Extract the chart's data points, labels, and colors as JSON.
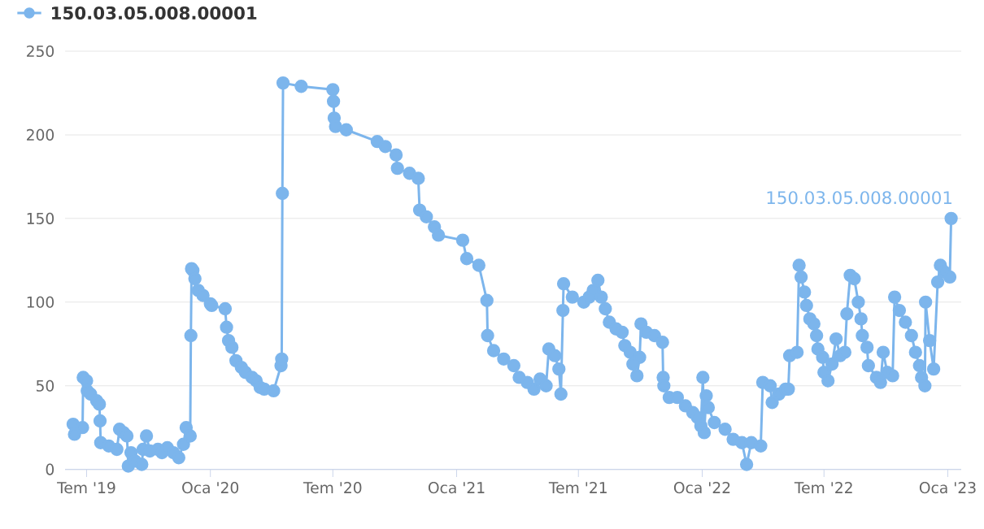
{
  "chart_data": {
    "type": "line",
    "x": [
      "2019-06-11",
      "2019-06-13",
      "2019-06-25",
      "2019-06-26",
      "2019-07-01",
      "2019-07-02",
      "2019-07-07",
      "2019-07-16",
      "2019-07-20",
      "2019-07-21",
      "2019-07-22",
      "2019-08-03",
      "2019-08-15",
      "2019-08-19",
      "2019-08-25",
      "2019-08-30",
      "2019-09-01",
      "2019-09-05",
      "2019-09-11",
      "2019-09-21",
      "2019-09-23",
      "2019-09-28",
      "2019-10-03",
      "2019-10-15",
      "2019-10-21",
      "2019-10-29",
      "2019-11-07",
      "2019-11-15",
      "2019-11-22",
      "2019-11-26",
      "2019-12-02",
      "2019-12-03",
      "2019-12-04",
      "2019-12-06",
      "2019-12-09",
      "2019-12-14",
      "2019-12-21",
      "2020-01-01",
      "2020-01-03",
      "2020-01-23",
      "2020-01-25",
      "2020-01-28",
      "2020-02-02",
      "2020-02-08",
      "2020-02-16",
      "2020-02-22",
      "2020-03-03",
      "2020-03-09",
      "2020-03-15",
      "2020-03-21",
      "2020-04-04",
      "2020-04-15",
      "2020-04-16",
      "2020-04-17",
      "2020-04-18",
      "2020-05-15",
      "2020-07-01",
      "2020-07-02",
      "2020-07-03",
      "2020-07-05",
      "2020-07-21",
      "2020-09-05",
      "2020-09-17",
      "2020-10-03",
      "2020-10-05",
      "2020-10-23",
      "2020-11-05",
      "2020-11-07",
      "2020-11-17",
      "2020-11-29",
      "2020-12-05",
      "2021-01-10",
      "2021-01-16",
      "2021-02-03",
      "2021-02-15",
      "2021-02-16",
      "2021-02-25",
      "2021-03-12",
      "2021-03-27",
      "2021-04-04",
      "2021-04-16",
      "2021-04-26",
      "2021-05-05",
      "2021-05-14",
      "2021-05-18",
      "2021-05-27",
      "2021-06-02",
      "2021-06-05",
      "2021-06-08",
      "2021-06-09",
      "2021-06-22",
      "2021-07-09",
      "2021-07-17",
      "2021-07-23",
      "2021-07-30",
      "2021-08-04",
      "2021-08-10",
      "2021-08-16",
      "2021-08-26",
      "2021-09-04",
      "2021-09-08",
      "2021-09-16",
      "2021-09-20",
      "2021-09-26",
      "2021-09-30",
      "2021-10-02",
      "2021-10-10",
      "2021-10-22",
      "2021-11-03",
      "2021-11-04",
      "2021-11-05",
      "2021-11-13",
      "2021-11-25",
      "2021-12-07",
      "2021-12-18",
      "2021-12-25",
      "2021-12-30",
      "2022-01-02",
      "2022-01-04",
      "2022-01-07",
      "2022-01-10",
      "2022-01-19",
      "2022-02-04",
      "2022-02-16",
      "2022-03-01",
      "2022-03-08",
      "2022-03-15",
      "2022-03-29",
      "2022-04-01",
      "2022-04-12",
      "2022-04-15",
      "2022-04-25",
      "2022-05-05",
      "2022-05-09",
      "2022-05-11",
      "2022-05-22",
      "2022-05-25",
      "2022-05-28",
      "2022-06-02",
      "2022-06-05",
      "2022-06-10",
      "2022-06-16",
      "2022-06-20",
      "2022-06-22",
      "2022-06-29",
      "2022-07-01",
      "2022-07-07",
      "2022-07-13",
      "2022-07-19",
      "2022-07-25",
      "2022-08-01",
      "2022-08-04",
      "2022-08-09",
      "2022-08-15",
      "2022-08-21",
      "2022-08-25",
      "2022-08-27",
      "2022-09-03",
      "2022-09-05",
      "2022-09-17",
      "2022-09-23",
      "2022-09-27",
      "2022-10-03",
      "2022-10-11",
      "2022-10-14",
      "2022-10-21",
      "2022-10-30",
      "2022-11-08",
      "2022-11-14",
      "2022-11-20",
      "2022-11-23",
      "2022-11-28",
      "2022-11-29",
      "2022-12-05",
      "2022-12-11",
      "2022-12-17",
      "2022-12-21",
      "2022-12-27",
      "2023-01-04",
      "2023-01-06"
    ],
    "series": [
      {
        "name": "150.03.05.008.00001",
        "color": "#7cb5ec",
        "values": [
          27,
          21,
          25,
          55,
          53,
          47,
          45,
          41,
          39,
          29,
          16,
          14,
          12,
          24,
          22,
          20,
          2,
          10,
          5,
          3,
          12,
          20,
          11,
          12,
          10,
          13,
          10,
          7,
          15,
          25,
          20,
          80,
          120,
          119,
          114,
          107,
          104,
          99,
          98,
          96,
          85,
          77,
          73,
          65,
          61,
          58,
          55,
          53,
          49,
          48,
          47,
          62,
          66,
          165,
          231,
          229,
          227,
          220,
          210,
          205,
          203,
          196,
          193,
          188,
          180,
          177,
          174,
          155,
          151,
          145,
          140,
          137,
          126,
          122,
          101,
          80,
          71,
          66,
          62,
          55,
          52,
          48,
          54,
          50,
          72,
          68,
          60,
          45,
          95,
          111,
          103,
          100,
          103,
          107,
          113,
          103,
          96,
          88,
          84,
          82,
          74,
          70,
          63,
          56,
          67,
          87,
          82,
          80,
          76,
          55,
          50,
          43,
          43,
          38,
          34,
          31,
          26,
          55,
          22,
          44,
          37,
          28,
          24,
          18,
          16,
          3,
          16,
          14,
          52,
          50,
          40,
          45,
          48,
          48,
          68,
          70,
          122,
          115,
          106,
          98,
          90,
          87,
          80,
          72,
          67,
          58,
          53,
          63,
          78,
          68,
          70,
          93,
          116,
          114,
          100,
          90,
          80,
          73,
          62,
          55,
          52,
          70,
          58,
          56,
          103,
          95,
          88,
          80,
          70,
          62,
          55,
          50,
          100,
          77,
          60,
          112,
          122,
          118,
          115,
          150
        ]
      }
    ],
    "xlim": [
      "2019-05-30",
      "2023-01-21"
    ],
    "xticks": [
      {
        "value": "2019-07-01",
        "label": "Tem '19"
      },
      {
        "value": "2020-01-01",
        "label": "Oca '20"
      },
      {
        "value": "2020-07-01",
        "label": "Tem '20"
      },
      {
        "value": "2021-01-01",
        "label": "Oca '21"
      },
      {
        "value": "2021-07-01",
        "label": "Tem '21"
      },
      {
        "value": "2022-01-01",
        "label": "Oca '22"
      },
      {
        "value": "2022-07-01",
        "label": "Tem '22"
      },
      {
        "value": "2023-01-01",
        "label": "Oca '23"
      }
    ],
    "ylim": [
      0,
      250
    ],
    "yticks": [
      0,
      50,
      100,
      150,
      200,
      250
    ],
    "grid": "y",
    "legend": "top left",
    "marker": "circle",
    "line_style": "solid",
    "annotations": [
      {
        "text": "150.03.05.008.00001",
        "x": "2023-01-06",
        "y": 150
      }
    ]
  }
}
